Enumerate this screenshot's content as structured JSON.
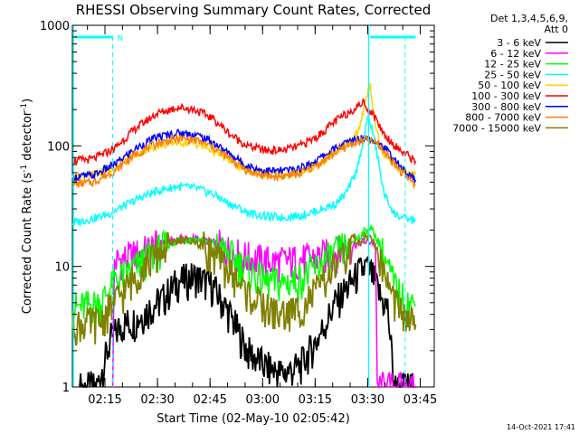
{
  "chart_data": {
    "type": "line",
    "title": "RHESSI Observing Summary Count Rates, Corrected",
    "xlabel": "Start Time (02-May-10 02:05:42)",
    "ylabel_main": "Corrected Count Rate (s",
    "ylabel_sup1": "-1",
    "ylabel_mid": " detector",
    "ylabel_sup2": "-1",
    "ylabel_end": ")",
    "ylim": [
      1,
      1000
    ],
    "y_scale": "log",
    "x_range_minutes": [
      "02:05:42",
      "03:49:00"
    ],
    "xticks": [
      "02:15",
      "02:30",
      "02:45",
      "03:00",
      "03:15",
      "03:30",
      "03:45"
    ],
    "yticks": [
      "1",
      "10",
      "100",
      "1000"
    ],
    "legend_header": [
      "Det 1,3,4,5,6,9,",
      "Att 0"
    ],
    "legend_placement": "right",
    "timestamp": "14-Oct-2021 17:41",
    "flag_label": "N",
    "series": [
      {
        "name": "3 - 6 keV",
        "color": "#000000",
        "values": [
          [
            2.1,
            1.0
          ],
          [
            7,
            1.0
          ],
          [
            11,
            2.5
          ],
          [
            14,
            3.3
          ],
          [
            18,
            3.6
          ],
          [
            22,
            4.5
          ],
          [
            26,
            5.5
          ],
          [
            30,
            7.5
          ],
          [
            35,
            8.3
          ],
          [
            40,
            6.9
          ],
          [
            45,
            4.0
          ],
          [
            50,
            2.0
          ],
          [
            55,
            1.5
          ],
          [
            60,
            1.3
          ],
          [
            65,
            1.5
          ],
          [
            70,
            2.5
          ],
          [
            75,
            5.0
          ],
          [
            79,
            7.0
          ],
          [
            82,
            9.0
          ],
          [
            84,
            10.0
          ],
          [
            86,
            8.0
          ],
          [
            88,
            5.5
          ],
          [
            90,
            4.5
          ],
          [
            92,
            1.0
          ],
          [
            98,
            1.0
          ]
        ]
      },
      {
        "name": "6 - 12 keV",
        "color": "#ff00ff",
        "values": [
          [
            11.5,
            1.0
          ],
          [
            12,
            11.0
          ],
          [
            14,
            11.5
          ],
          [
            18,
            12.5
          ],
          [
            22,
            14.0
          ],
          [
            26,
            16.0
          ],
          [
            31,
            17.0
          ],
          [
            36,
            17.0
          ],
          [
            41,
            15.5
          ],
          [
            46,
            13.0
          ],
          [
            52,
            11.5
          ],
          [
            58,
            11.0
          ],
          [
            64,
            11.3
          ],
          [
            70,
            12.0
          ],
          [
            76,
            13.5
          ],
          [
            80,
            15.0
          ],
          [
            83,
            16.0
          ],
          [
            85,
            16.0
          ],
          [
            86.5,
            15.5
          ],
          [
            87,
            1.0
          ],
          [
            98,
            1.0
          ]
        ]
      },
      {
        "name": "12 - 25 keV",
        "color": "#00ff00",
        "values": [
          [
            0,
            4.5
          ],
          [
            8,
            5.0
          ],
          [
            12,
            7.5
          ],
          [
            16,
            9.0
          ],
          [
            20,
            11.0
          ],
          [
            25,
            14.0
          ],
          [
            30,
            16.5
          ],
          [
            35,
            17.0
          ],
          [
            40,
            15.5
          ],
          [
            45,
            12.5
          ],
          [
            50,
            9.5
          ],
          [
            55,
            7.5
          ],
          [
            60,
            7.3
          ],
          [
            65,
            8.0
          ],
          [
            70,
            10.0
          ],
          [
            75,
            13.0
          ],
          [
            80,
            16.0
          ],
          [
            83,
            19.0
          ],
          [
            85,
            21.0
          ],
          [
            87,
            17.0
          ],
          [
            89,
            12.0
          ],
          [
            92,
            7.0
          ],
          [
            95,
            5.0
          ],
          [
            98,
            4.8
          ]
        ]
      },
      {
        "name": "25 - 50 keV",
        "color": "#00ffff",
        "values": [
          [
            0,
            23.0
          ],
          [
            6,
            25.0
          ],
          [
            10,
            27.0
          ],
          [
            15,
            32.0
          ],
          [
            20,
            38.0
          ],
          [
            25,
            43.0
          ],
          [
            30,
            46.0
          ],
          [
            35,
            45.0
          ],
          [
            40,
            40.0
          ],
          [
            45,
            33.0
          ],
          [
            50,
            28.0
          ],
          [
            55,
            26.0
          ],
          [
            60,
            25.5
          ],
          [
            65,
            26.5
          ],
          [
            70,
            29.0
          ],
          [
            75,
            33.0
          ],
          [
            78,
            40.0
          ],
          [
            81,
            60.0
          ],
          [
            83,
            110.0
          ],
          [
            84.5,
            180.0
          ],
          [
            86,
            120.0
          ],
          [
            87.5,
            70.0
          ],
          [
            89,
            40.0
          ],
          [
            92,
            27.0
          ],
          [
            95,
            25.0
          ],
          [
            98,
            24.0
          ]
        ]
      },
      {
        "name": "50 - 100 keV",
        "color": "#ffd200",
        "values": [
          [
            0,
            57.0
          ],
          [
            6,
            58.0
          ],
          [
            12,
            65.0
          ],
          [
            18,
            85.0
          ],
          [
            24,
            100.0
          ],
          [
            30,
            108.0
          ],
          [
            35,
            105.0
          ],
          [
            40,
            92.0
          ],
          [
            45,
            75.0
          ],
          [
            50,
            62.0
          ],
          [
            55,
            58.0
          ],
          [
            60,
            58.0
          ],
          [
            65,
            60.0
          ],
          [
            70,
            70.0
          ],
          [
            75,
            88.0
          ],
          [
            79,
            105.0
          ],
          [
            82,
            140.0
          ],
          [
            84,
            260.0
          ],
          [
            85,
            330.0
          ],
          [
            86.5,
            150.0
          ],
          [
            88,
            95.0
          ],
          [
            91,
            75.0
          ],
          [
            94,
            62.0
          ],
          [
            98,
            58.0
          ]
        ]
      },
      {
        "name": "100 - 300 keV",
        "color": "#ff0000",
        "values": [
          [
            0,
            75.0
          ],
          [
            6,
            78.0
          ],
          [
            12,
            95.0
          ],
          [
            18,
            140.0
          ],
          [
            24,
            185.0
          ],
          [
            30,
            210.0
          ],
          [
            35,
            200.0
          ],
          [
            40,
            170.0
          ],
          [
            45,
            125.0
          ],
          [
            50,
            100.0
          ],
          [
            55,
            92.0
          ],
          [
            60,
            92.0
          ],
          [
            65,
            100.0
          ],
          [
            70,
            120.0
          ],
          [
            75,
            160.0
          ],
          [
            80,
            200.0
          ],
          [
            83,
            230.0
          ],
          [
            86,
            180.0
          ],
          [
            89,
            125.0
          ],
          [
            93,
            95.0
          ],
          [
            98,
            75.0
          ]
        ]
      },
      {
        "name": "300 - 800 keV",
        "color": "#0000ff",
        "values": [
          [
            0,
            55.0
          ],
          [
            6,
            57.0
          ],
          [
            12,
            70.0
          ],
          [
            18,
            95.0
          ],
          [
            24,
            118.0
          ],
          [
            30,
            128.0
          ],
          [
            35,
            125.0
          ],
          [
            40,
            108.0
          ],
          [
            45,
            85.0
          ],
          [
            50,
            68.0
          ],
          [
            55,
            62.0
          ],
          [
            60,
            62.0
          ],
          [
            65,
            65.0
          ],
          [
            70,
            77.0
          ],
          [
            75,
            95.0
          ],
          [
            80,
            112.0
          ],
          [
            84,
            118.0
          ],
          [
            87,
            110.0
          ],
          [
            90,
            90.0
          ],
          [
            94,
            65.0
          ],
          [
            98,
            52.0
          ]
        ]
      },
      {
        "name": "800 - 7000 keV",
        "color": "#ff7f00",
        "values": [
          [
            0,
            48.0
          ],
          [
            6,
            50.0
          ],
          [
            12,
            62.0
          ],
          [
            18,
            85.0
          ],
          [
            24,
            105.0
          ],
          [
            30,
            115.0
          ],
          [
            35,
            112.0
          ],
          [
            40,
            98.0
          ],
          [
            45,
            78.0
          ],
          [
            50,
            62.0
          ],
          [
            55,
            56.0
          ],
          [
            60,
            56.0
          ],
          [
            65,
            59.0
          ],
          [
            70,
            70.0
          ],
          [
            75,
            88.0
          ],
          [
            80,
            105.0
          ],
          [
            84,
            112.0
          ],
          [
            87,
            104.0
          ],
          [
            90,
            84.0
          ],
          [
            94,
            60.0
          ],
          [
            98,
            48.0
          ]
        ]
      },
      {
        "name": "7000 - 15000 keV",
        "color": "#808000",
        "values": [
          [
            0,
            3.3
          ],
          [
            8,
            3.5
          ],
          [
            12,
            5.0
          ],
          [
            16,
            7.0
          ],
          [
            20,
            10.0
          ],
          [
            25,
            13.5
          ],
          [
            30,
            16.5
          ],
          [
            35,
            16.0
          ],
          [
            40,
            13.0
          ],
          [
            45,
            9.0
          ],
          [
            50,
            6.0
          ],
          [
            55,
            4.5
          ],
          [
            60,
            4.0
          ],
          [
            65,
            4.5
          ],
          [
            70,
            6.5
          ],
          [
            75,
            10.0
          ],
          [
            80,
            14.5
          ],
          [
            84,
            18.0
          ],
          [
            86,
            16.0
          ],
          [
            88,
            11.0
          ],
          [
            91,
            6.0
          ],
          [
            94,
            4.0
          ],
          [
            98,
            3.3
          ]
        ]
      }
    ],
    "annotations": {
      "saa_cyan_vlines_min": [
        0.0,
        84.3
      ],
      "dashed_cyan_vlines_min": [
        11.5,
        95.0
      ],
      "top_cyan_bars_min": [
        [
          0.0,
          11.5
        ],
        [
          84.3,
          98.0
        ]
      ],
      "x_offset_minutes_from_02_05_42": true
    }
  }
}
